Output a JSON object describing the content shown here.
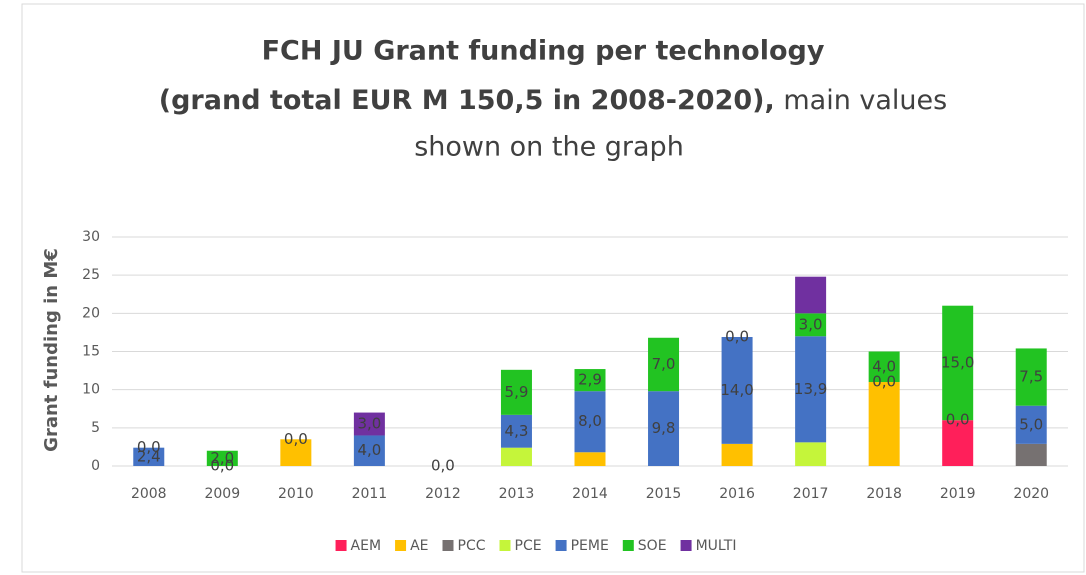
{
  "chart_data": {
    "type": "stacked_bar",
    "title": {
      "line1": "FCH JU Grant funding per technology",
      "line2_bold": "(grand total EUR M 150,5 in 2008-2020),",
      "line2_rest": "main values",
      "line3": "shown on the graph"
    },
    "y_label": "Grant funding in M€",
    "categories": [
      "2008",
      "2009",
      "2010",
      "2011",
      "2012",
      "2013",
      "2014",
      "2015",
      "2016",
      "2017",
      "2018",
      "2019",
      "2020"
    ],
    "series": [
      {
        "name": "AEM",
        "color": "#ff1f5a",
        "values": [
          0,
          0,
          0,
          0,
          0,
          0,
          0,
          0,
          0,
          0,
          0,
          6.0,
          0
        ]
      },
      {
        "name": "AE",
        "color": "#ffc000",
        "values": [
          0,
          0,
          3.5,
          0,
          0,
          0,
          1.8,
          0,
          2.9,
          0,
          11.0,
          0,
          0
        ]
      },
      {
        "name": "PCC",
        "color": "#767171",
        "values": [
          0,
          0,
          0,
          0,
          0,
          0,
          0,
          0,
          0,
          0,
          0,
          0,
          2.9
        ]
      },
      {
        "name": "PCE",
        "color": "#c5f53a",
        "values": [
          0,
          0,
          0,
          0,
          0,
          2.4,
          0,
          0,
          0,
          3.1,
          0,
          0,
          0
        ]
      },
      {
        "name": "PEME",
        "color": "#4472c4",
        "values": [
          2.4,
          0,
          0,
          4.0,
          0,
          4.3,
          8.0,
          9.8,
          14.0,
          13.9,
          0,
          0,
          5.0
        ],
        "value_labels": [
          "2,4",
          "0,0",
          "0,0",
          "4,0",
          "0,0",
          "4,3",
          "8,0",
          "9,8",
          "14,0",
          "13,9",
          "0,0",
          "0,0",
          "5,0"
        ]
      },
      {
        "name": "SOE",
        "color": "#22c322",
        "values": [
          0,
          2.0,
          0,
          0,
          0,
          5.9,
          2.9,
          7.0,
          0,
          3.0,
          4.0,
          15.0,
          7.5
        ],
        "value_labels": [
          "0,0",
          "2,0",
          null,
          null,
          null,
          "5,9",
          "2,9",
          "7,0",
          null,
          "3,0",
          "4,0",
          "15,0",
          "7,5"
        ]
      },
      {
        "name": "MULTI",
        "color": "#7030a0",
        "values": [
          0,
          0,
          0,
          3.0,
          0,
          0,
          0,
          0,
          0,
          4.8,
          0,
          0,
          0
        ],
        "value_labels": [
          null,
          null,
          null,
          "3,0",
          null,
          null,
          null,
          null,
          "0,0",
          null,
          null,
          null,
          null
        ]
      }
    ],
    "ylim": [
      0,
      30
    ],
    "yticks": [
      0,
      5,
      10,
      15,
      20,
      25,
      30
    ],
    "grid": true,
    "legend": "bottom"
  }
}
